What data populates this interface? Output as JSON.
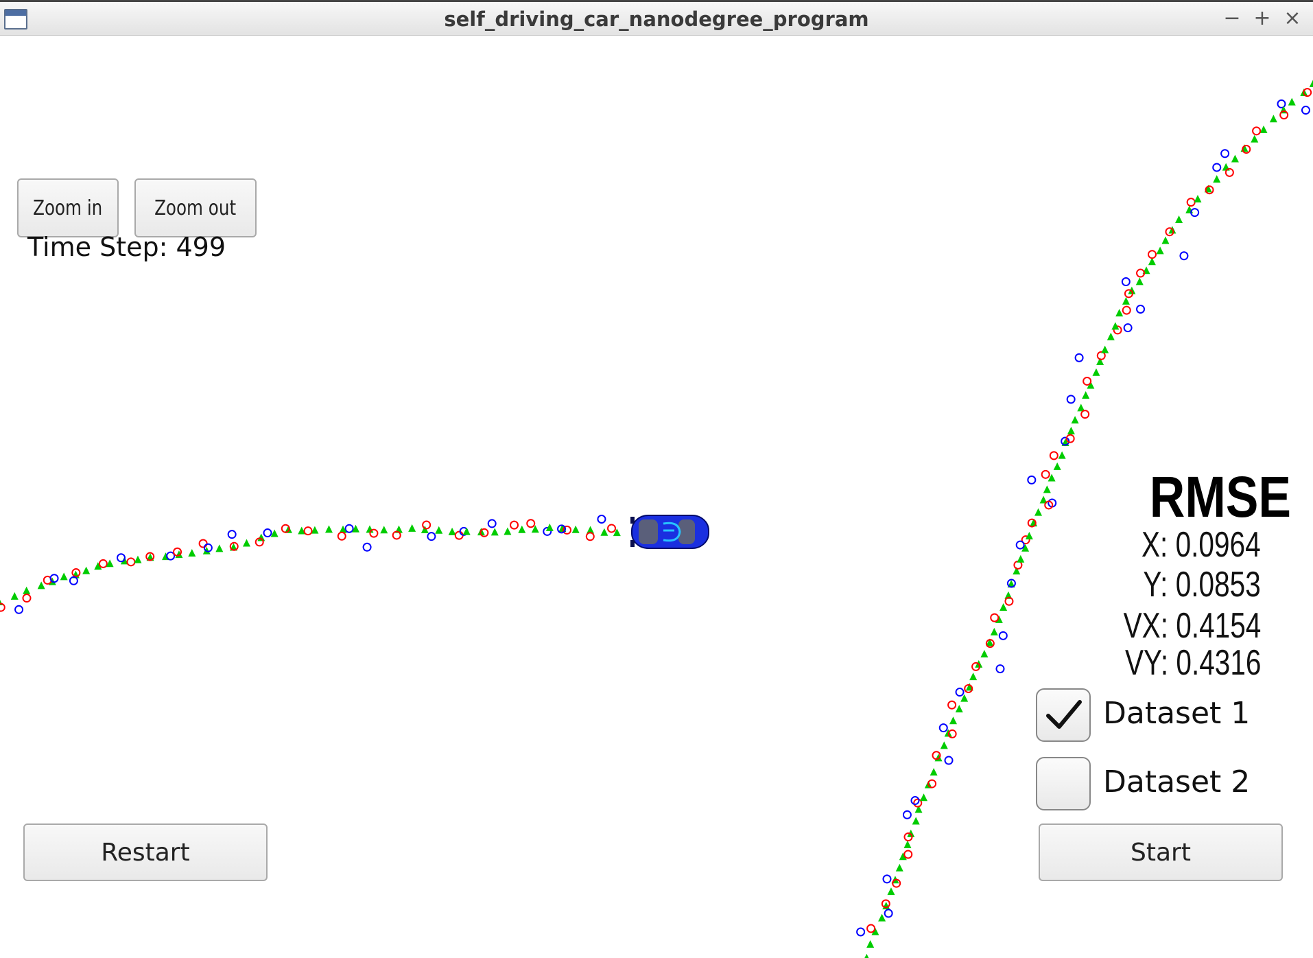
{
  "window": {
    "title": "self_driving_car_nanodegree_program",
    "controls": {
      "minimize": "−",
      "maximize": "+",
      "close": "×"
    }
  },
  "toolbar": {
    "zoom_in_label": "Zoom in",
    "zoom_out_label": "Zoom out"
  },
  "status": {
    "time_step": "Time Step: 499"
  },
  "rmse": {
    "title": "RMSE",
    "x": "X: 0.0964",
    "y": "Y: 0.0853",
    "vx": "VX: 0.4154",
    "vy": "VY: 0.4316"
  },
  "datasets": [
    {
      "label": "Dataset 1",
      "checked": true
    },
    {
      "label": "Dataset 2",
      "checked": false
    }
  ],
  "buttons": {
    "restart_label": "Restart",
    "start_label": "Start"
  },
  "colors": {
    "lidar_marker": "#ff0000",
    "radar_marker": "#0000ff",
    "estimate_marker": "#00cc00",
    "car_body": "#1a2fe0"
  }
}
